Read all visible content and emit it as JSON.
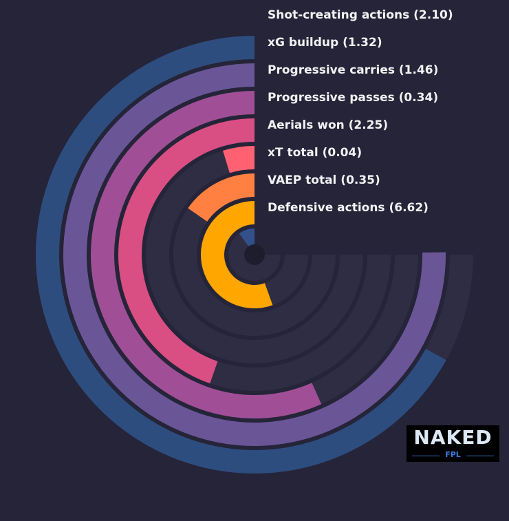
{
  "chart_data": {
    "type": "radial-bar",
    "metrics": [
      {
        "label": "Defensive actions (6.62)",
        "fraction": 0.67,
        "color": "#2e4d7f"
      },
      {
        "label": "VAEP total (0.35)",
        "fraction": 0.752,
        "color": "#6a5597"
      },
      {
        "label": "xT total (0.04)",
        "fraction": 0.567,
        "color": "#a04f96"
      },
      {
        "label": "Aerials won (2.25)",
        "fraction": 0.447,
        "color": "#d94f83"
      },
      {
        "label": "Progressive passes (0.34)",
        "fraction": 0.047,
        "color": "#ff6172"
      },
      {
        "label": "Progressive carries (1.46)",
        "fraction": 0.153,
        "color": "#ff8040"
      },
      {
        "label": "xG buildup (1.32)",
        "fraction": 0.555,
        "color": "#ffa600"
      },
      {
        "label": "Shot-creating actions (2.10)",
        "fraction": 0.1,
        "color": "#34508a"
      }
    ],
    "track_color": "#2e2d43",
    "background": "#252438",
    "text_color": "#f2f2f4"
  },
  "logo": {
    "word": "NAKED",
    "sub": "FPL",
    "background": "#000000",
    "accent": "#2f6fd0"
  }
}
